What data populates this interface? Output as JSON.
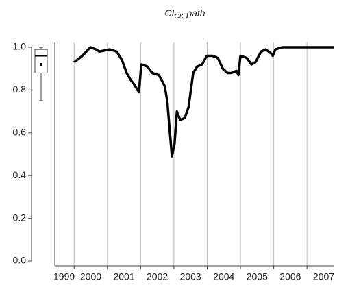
{
  "chart_data": {
    "type": "line",
    "title": "CI",
    "title_subscript": "CK",
    "title_rest": "path",
    "x": [
      2000.0,
      2000.25,
      2000.49,
      2000.66,
      2000.76,
      2001.07,
      2001.28,
      2001.44,
      2001.58,
      2001.69,
      2001.79,
      2001.95,
      2002.02,
      2002.2,
      2002.35,
      2002.55,
      2002.72,
      2002.8,
      2002.88,
      2002.94,
      2003.02,
      2003.09,
      2003.19,
      2003.33,
      2003.44,
      2003.58,
      2003.7,
      2003.85,
      2003.99,
      2004.16,
      2004.32,
      2004.47,
      2004.61,
      2004.73,
      2004.88,
      2004.94,
      2005.0,
      2005.19,
      2005.33,
      2005.45,
      2005.62,
      2005.76,
      2005.93,
      2005.97,
      2006.05,
      2006.26,
      2007.82
    ],
    "values": [
      0.93,
      0.96,
      1.0,
      0.99,
      0.98,
      0.99,
      0.98,
      0.94,
      0.88,
      0.85,
      0.83,
      0.79,
      0.92,
      0.91,
      0.88,
      0.87,
      0.82,
      0.75,
      0.6,
      0.49,
      0.55,
      0.7,
      0.66,
      0.67,
      0.72,
      0.88,
      0.91,
      0.92,
      0.96,
      0.96,
      0.95,
      0.9,
      0.88,
      0.88,
      0.89,
      0.87,
      0.96,
      0.95,
      0.92,
      0.93,
      0.98,
      0.99,
      0.97,
      0.96,
      0.99,
      1.0,
      1.0
    ],
    "color": "#000000",
    "xlim": [
      1999.42,
      2007.82
    ],
    "xticks": [
      {
        "value": 1999.7,
        "label": "1999"
      },
      {
        "value": 2000.5,
        "label": "2000"
      },
      {
        "value": 2001.5,
        "label": "2001"
      },
      {
        "value": 2002.5,
        "label": "2002"
      },
      {
        "value": 2003.5,
        "label": "2003"
      },
      {
        "value": 2004.5,
        "label": "2004"
      },
      {
        "value": 2005.5,
        "label": "2005"
      },
      {
        "value": 2006.5,
        "label": "2006"
      },
      {
        "value": 2007.5,
        "label": "2007"
      }
    ],
    "xgrid": [
      2000,
      2001,
      2002,
      2003,
      2004,
      2005,
      2006,
      2007
    ],
    "ylim": [
      0,
      1
    ],
    "yticks": [
      {
        "value": 0,
        "label": "0.0"
      },
      0.2,
      0.4,
      0.6,
      0.8,
      {
        "value": 1,
        "label": "1.0"
      }
    ],
    "boxplot": {
      "min": 0.75,
      "q1": 0.88,
      "median": 0.96,
      "q3": 0.99,
      "max": 1.0,
      "mean": 0.92
    }
  }
}
